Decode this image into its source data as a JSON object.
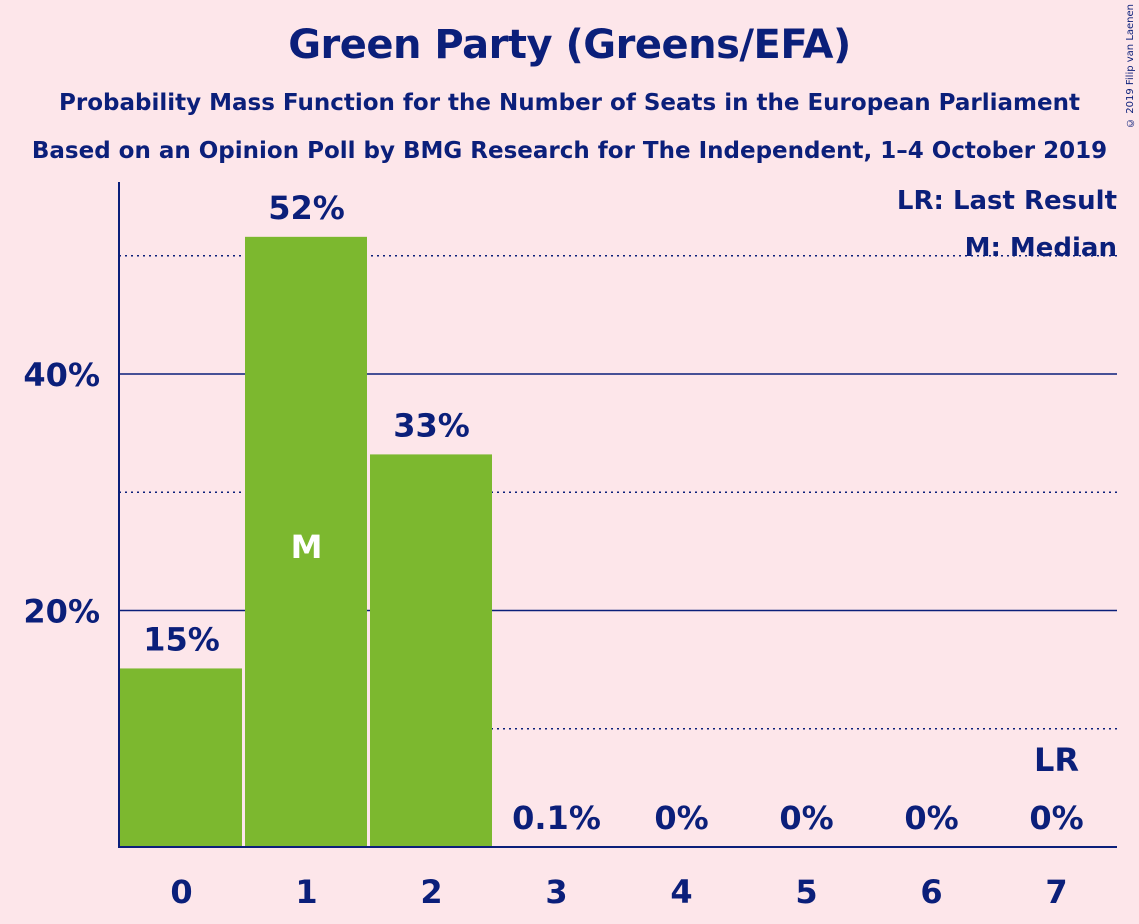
{
  "header": {
    "title": "Green Party (Greens/EFA)",
    "subtitle1": "Probability Mass Function for the Number of Seats in the European Parliament",
    "subtitle2": "Based on an Opinion Poll by BMG Research for The Independent, 1–4 October 2019",
    "copyright": "© 2019 Filip van Laenen"
  },
  "legend": {
    "last_result": "LR: Last Result",
    "median": "M: Median"
  },
  "colors": {
    "background": "#fde6ea",
    "bar": "#7cb82f",
    "text": "#0b1f7a"
  },
  "chart_data": {
    "type": "bar",
    "categories": [
      "0",
      "1",
      "2",
      "3",
      "4",
      "5",
      "6",
      "7"
    ],
    "values": [
      15.1,
      51.6,
      33.2,
      0.1,
      0,
      0,
      0,
      0
    ],
    "value_labels": [
      "15%",
      "52%",
      "33%",
      "0.1%",
      "0%",
      "0%",
      "0%",
      "0%"
    ],
    "ylim": [
      0,
      56
    ],
    "y_ticks": [
      20,
      40
    ],
    "y_tick_labels": [
      "20%",
      "40%"
    ],
    "dotted_gridlines": [
      10,
      30,
      50
    ],
    "median_index": 1,
    "median_label": "M",
    "last_result_index": 7,
    "last_result_label": "LR",
    "legend_position": "top-right"
  }
}
